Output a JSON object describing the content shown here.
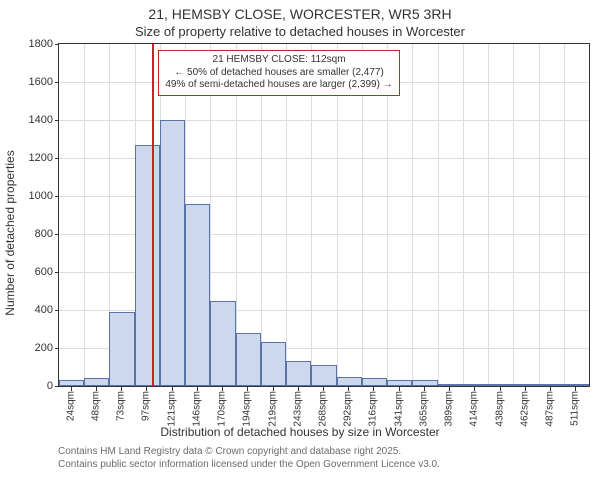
{
  "title": {
    "line1": "21, HEMSBY CLOSE, WORCESTER, WR5 3RH",
    "line2": "Size of property relative to detached houses in Worcester"
  },
  "chart": {
    "type": "histogram",
    "xlabel": "Distribution of detached houses by size in Worcester",
    "ylabel": "Number of detached properties",
    "ylim": [
      0,
      1800
    ],
    "ytick_step": 200,
    "plot_border_color": "#333333",
    "grid_color": "#dddddd",
    "background_color": "#ffffff",
    "bar_fill": "#cdd8ee",
    "bar_edge": "#5b74a8",
    "bar_width_ratio": 1.0,
    "reference_line": {
      "color": "#cc2222",
      "width": 2,
      "x_index": 3.7,
      "label_box": {
        "border_color": "#cc2222",
        "bg": "#ffffff",
        "fontsize": 10,
        "lines": [
          "21 HEMSBY CLOSE: 112sqm",
          "← 50% of detached houses are smaller (2,477)",
          "49% of semi-detached houses are larger (2,399) →"
        ]
      }
    },
    "x_categories": [
      "24sqm",
      "48sqm",
      "73sqm",
      "97sqm",
      "121sqm",
      "146sqm",
      "170sqm",
      "194sqm",
      "219sqm",
      "243sqm",
      "268sqm",
      "292sqm",
      "316sqm",
      "341sqm",
      "365sqm",
      "389sqm",
      "414sqm",
      "438sqm",
      "462sqm",
      "487sqm",
      "511sqm"
    ],
    "values": [
      30,
      40,
      390,
      1270,
      1400,
      960,
      450,
      280,
      230,
      130,
      110,
      50,
      40,
      30,
      30,
      10,
      5,
      10,
      5,
      5,
      5
    ],
    "label_fontsize": 12,
    "tick_fontsize": 11,
    "xtick_fontsize": 10
  },
  "footer": {
    "line1": "Contains HM Land Registry data © Crown copyright and database right 2025.",
    "line2": "Contains public sector information licensed under the Open Government Licence v3.0."
  }
}
